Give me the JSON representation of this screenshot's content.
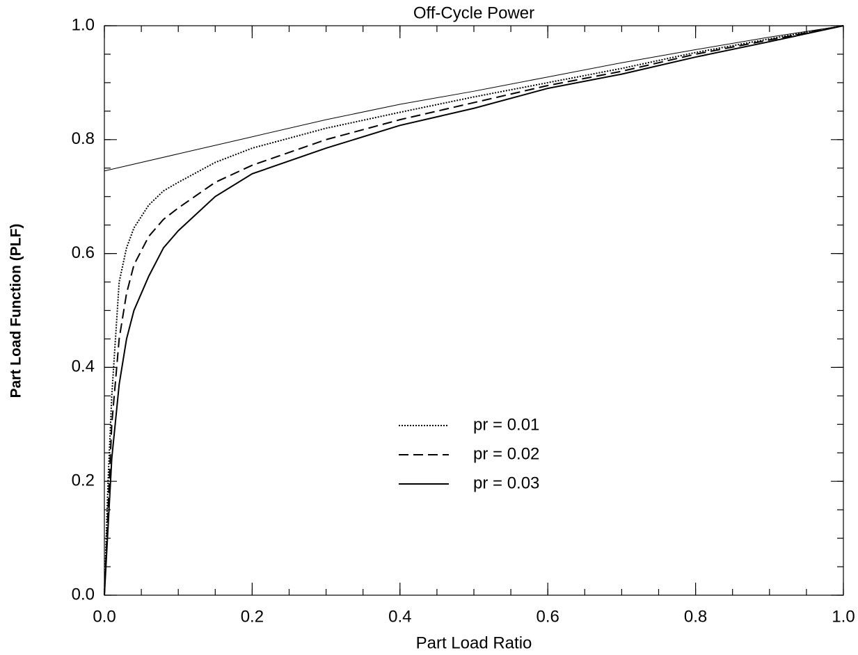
{
  "chart_data": {
    "type": "line",
    "title": "Off-Cycle Power",
    "x_label": "Part Load Ratio",
    "y_label": "Part Load Function (PLF)",
    "xlim": [
      0,
      1
    ],
    "ylim": [
      0,
      1
    ],
    "xticks": [
      {
        "value": 0,
        "label": "0.0"
      },
      0.2,
      0.4,
      0.6,
      0.8,
      {
        "value": 1,
        "label": "1.0"
      }
    ],
    "yticks": [
      {
        "value": 0,
        "label": "0.0"
      },
      0.2,
      0.4,
      0.6,
      0.8,
      {
        "value": 1,
        "label": "1.0"
      }
    ],
    "minor_tick_step": 0.05,
    "series": [
      {
        "color": "#000000",
        "line_width": 1,
        "x": [
          0,
          0.1,
          0.2,
          0.3,
          0.4,
          0.5,
          0.6,
          0.7,
          0.8,
          0.9,
          1
        ],
        "values": [
          0.745,
          0.775,
          0.805,
          0.835,
          0.862,
          0.885,
          0.91,
          0.935,
          0.958,
          0.98,
          1
        ]
      },
      {
        "name": "pr = 0.01",
        "color": "#000000",
        "line_width": 2,
        "dash": "2,2",
        "x": [
          0,
          0.005,
          0.01,
          0.015,
          0.02,
          0.03,
          0.04,
          0.06,
          0.08,
          0.1,
          0.15,
          0.2,
          0.3,
          0.4,
          0.5,
          0.6,
          0.7,
          0.8,
          0.9,
          1
        ],
        "values": [
          0,
          0.2,
          0.35,
          0.45,
          0.55,
          0.61,
          0.645,
          0.685,
          0.71,
          0.725,
          0.76,
          0.785,
          0.82,
          0.848,
          0.875,
          0.9,
          0.925,
          0.953,
          0.977,
          1
        ]
      },
      {
        "name": "pr = 0.02",
        "color": "#000000",
        "line_width": 2,
        "dash": "14,7",
        "x": [
          0,
          0.01,
          0.02,
          0.03,
          0.04,
          0.06,
          0.08,
          0.1,
          0.15,
          0.2,
          0.3,
          0.4,
          0.5,
          0.6,
          0.7,
          0.8,
          0.9,
          1
        ],
        "values": [
          0,
          0.3,
          0.45,
          0.53,
          0.58,
          0.63,
          0.66,
          0.68,
          0.725,
          0.755,
          0.8,
          0.835,
          0.865,
          0.895,
          0.92,
          0.95,
          0.975,
          1
        ]
      },
      {
        "name": "pr = 0.03",
        "color": "#000000",
        "line_width": 2,
        "x": [
          0,
          0.01,
          0.02,
          0.03,
          0.04,
          0.06,
          0.08,
          0.1,
          0.15,
          0.2,
          0.3,
          0.4,
          0.5,
          0.6,
          0.7,
          0.8,
          0.9,
          1
        ],
        "values": [
          0,
          0.24,
          0.37,
          0.45,
          0.5,
          0.56,
          0.61,
          0.64,
          0.7,
          0.74,
          0.785,
          0.825,
          0.855,
          0.89,
          0.915,
          0.945,
          0.972,
          1
        ]
      }
    ]
  }
}
